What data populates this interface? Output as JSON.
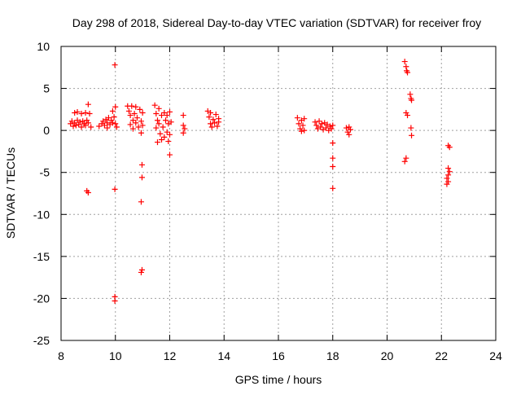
{
  "chart_data": {
    "type": "scatter",
    "title": "Day 298 of 2018, Sidereal Day-to-day VTEC variation (SDTVAR) for receiver froy",
    "xlabel": "GPS time / hours",
    "ylabel": "SDTVAR / TECUs",
    "xlim": [
      8,
      24
    ],
    "ylim": [
      -25,
      10
    ],
    "xticks": [
      8,
      10,
      12,
      14,
      16,
      18,
      20,
      22,
      24
    ],
    "yticks": [
      -25,
      -20,
      -15,
      -10,
      -5,
      0,
      5,
      10
    ],
    "grid": true,
    "marker": "+",
    "series": [
      {
        "name": "SDTVAR",
        "color": "#ff0000",
        "points": [
          [
            8.35,
            0.8
          ],
          [
            8.4,
            1.1
          ],
          [
            8.45,
            0.5
          ],
          [
            8.5,
            2.1
          ],
          [
            8.5,
            0.9
          ],
          [
            8.55,
            0.6
          ],
          [
            8.6,
            1.2
          ],
          [
            8.6,
            2.2
          ],
          [
            8.65,
            0.7
          ],
          [
            8.7,
            1.0
          ],
          [
            8.75,
            2.0
          ],
          [
            8.75,
            0.4
          ],
          [
            8.8,
            1.1
          ],
          [
            8.85,
            0.8
          ],
          [
            8.9,
            2.1
          ],
          [
            8.9,
            0.6
          ],
          [
            8.95,
            1.2
          ],
          [
            9.0,
            3.1
          ],
          [
            9.0,
            0.9
          ],
          [
            9.05,
            2.0
          ],
          [
            9.1,
            0.4
          ],
          [
            8.95,
            -7.2
          ],
          [
            9.0,
            -7.4
          ],
          [
            9.4,
            0.5
          ],
          [
            9.5,
            0.8
          ],
          [
            9.55,
            1.1
          ],
          [
            9.6,
            0.6
          ],
          [
            9.65,
            1.3
          ],
          [
            9.7,
            0.9
          ],
          [
            9.7,
            0.3
          ],
          [
            9.75,
            1.5
          ],
          [
            9.8,
            0.7
          ],
          [
            9.85,
            1.2
          ],
          [
            9.9,
            0.9
          ],
          [
            9.9,
            2.3
          ],
          [
            9.95,
            1.6
          ],
          [
            10.0,
            0.8
          ],
          [
            10.0,
            2.8
          ],
          [
            10.05,
            0.4
          ],
          [
            9.98,
            7.8
          ],
          [
            9.98,
            -7.0
          ],
          [
            9.98,
            -19.8
          ],
          [
            9.98,
            -20.3
          ],
          [
            10.45,
            2.9
          ],
          [
            10.5,
            2.3
          ],
          [
            10.55,
            1.8
          ],
          [
            10.55,
            0.7
          ],
          [
            10.6,
            2.9
          ],
          [
            10.65,
            1.2
          ],
          [
            10.65,
            0.2
          ],
          [
            10.7,
            2.0
          ],
          [
            10.75,
            0.9
          ],
          [
            10.75,
            2.8
          ],
          [
            10.8,
            1.5
          ],
          [
            10.85,
            0.4
          ],
          [
            10.9,
            2.5
          ],
          [
            10.95,
            1.1
          ],
          [
            10.95,
            -0.3
          ],
          [
            11.0,
            0.6
          ],
          [
            11.0,
            2.1
          ],
          [
            10.98,
            -4.1
          ],
          [
            10.98,
            -5.6
          ],
          [
            10.95,
            -8.5
          ],
          [
            10.98,
            -16.6
          ],
          [
            10.95,
            -16.9
          ],
          [
            11.45,
            3.0
          ],
          [
            11.5,
            2.0
          ],
          [
            11.5,
            0.3
          ],
          [
            11.55,
            1.2
          ],
          [
            11.55,
            -1.4
          ],
          [
            11.6,
            2.6
          ],
          [
            11.6,
            0.8
          ],
          [
            11.65,
            -0.4
          ],
          [
            11.7,
            1.8
          ],
          [
            11.7,
            -1.1
          ],
          [
            11.75,
            0.4
          ],
          [
            11.8,
            2.1
          ],
          [
            11.8,
            -0.8
          ],
          [
            11.85,
            1.2
          ],
          [
            11.9,
            -0.2
          ],
          [
            11.9,
            1.8
          ],
          [
            11.95,
            0.8
          ],
          [
            11.95,
            -1.3
          ],
          [
            12.0,
            2.2
          ],
          [
            12.0,
            -0.5
          ],
          [
            12.05,
            1.0
          ],
          [
            12.0,
            -2.9
          ],
          [
            12.5,
            1.8
          ],
          [
            12.5,
            0.6
          ],
          [
            12.5,
            -0.3
          ],
          [
            12.55,
            0.2
          ],
          [
            13.4,
            2.3
          ],
          [
            13.45,
            1.6
          ],
          [
            13.5,
            0.8
          ],
          [
            13.5,
            2.1
          ],
          [
            13.55,
            0.4
          ],
          [
            13.6,
            1.3
          ],
          [
            13.65,
            0.9
          ],
          [
            13.7,
            1.9
          ],
          [
            13.75,
            0.5
          ],
          [
            13.8,
            1.4
          ],
          [
            13.8,
            1.0
          ],
          [
            16.7,
            1.5
          ],
          [
            16.75,
            0.8
          ],
          [
            16.8,
            0.2
          ],
          [
            16.85,
            1.2
          ],
          [
            16.85,
            -0.1
          ],
          [
            16.9,
            0.6
          ],
          [
            16.95,
            1.4
          ],
          [
            16.95,
            0.0
          ],
          [
            17.35,
            1.0
          ],
          [
            17.4,
            0.6
          ],
          [
            17.45,
            0.2
          ],
          [
            17.5,
            1.1
          ],
          [
            17.55,
            0.4
          ],
          [
            17.6,
            0.8
          ],
          [
            17.65,
            0.1
          ],
          [
            17.7,
            0.9
          ],
          [
            17.75,
            0.3
          ],
          [
            17.8,
            0.7
          ],
          [
            17.85,
            0.0
          ],
          [
            17.9,
            0.5
          ],
          [
            17.95,
            0.2
          ],
          [
            18.0,
            0.6
          ],
          [
            18.0,
            -1.5
          ],
          [
            18.0,
            -3.3
          ],
          [
            18.0,
            -4.3
          ],
          [
            18.0,
            -6.9
          ],
          [
            18.5,
            0.3
          ],
          [
            18.55,
            -0.2
          ],
          [
            18.6,
            0.4
          ],
          [
            18.6,
            -0.5
          ],
          [
            18.65,
            0.1
          ],
          [
            20.65,
            8.2
          ],
          [
            20.7,
            7.6
          ],
          [
            20.72,
            7.1
          ],
          [
            20.75,
            6.9
          ],
          [
            20.7,
            2.1
          ],
          [
            20.75,
            1.8
          ],
          [
            20.7,
            -3.3
          ],
          [
            20.65,
            -3.7
          ],
          [
            20.85,
            4.3
          ],
          [
            20.88,
            3.8
          ],
          [
            20.9,
            3.6
          ],
          [
            20.88,
            0.3
          ],
          [
            20.9,
            -0.6
          ],
          [
            22.25,
            -1.8
          ],
          [
            22.3,
            -2.0
          ],
          [
            22.25,
            -4.5
          ],
          [
            22.3,
            -4.9
          ],
          [
            22.25,
            -5.3
          ],
          [
            22.2,
            -5.7
          ],
          [
            22.25,
            -6.1
          ],
          [
            22.2,
            -6.4
          ]
        ]
      }
    ]
  }
}
